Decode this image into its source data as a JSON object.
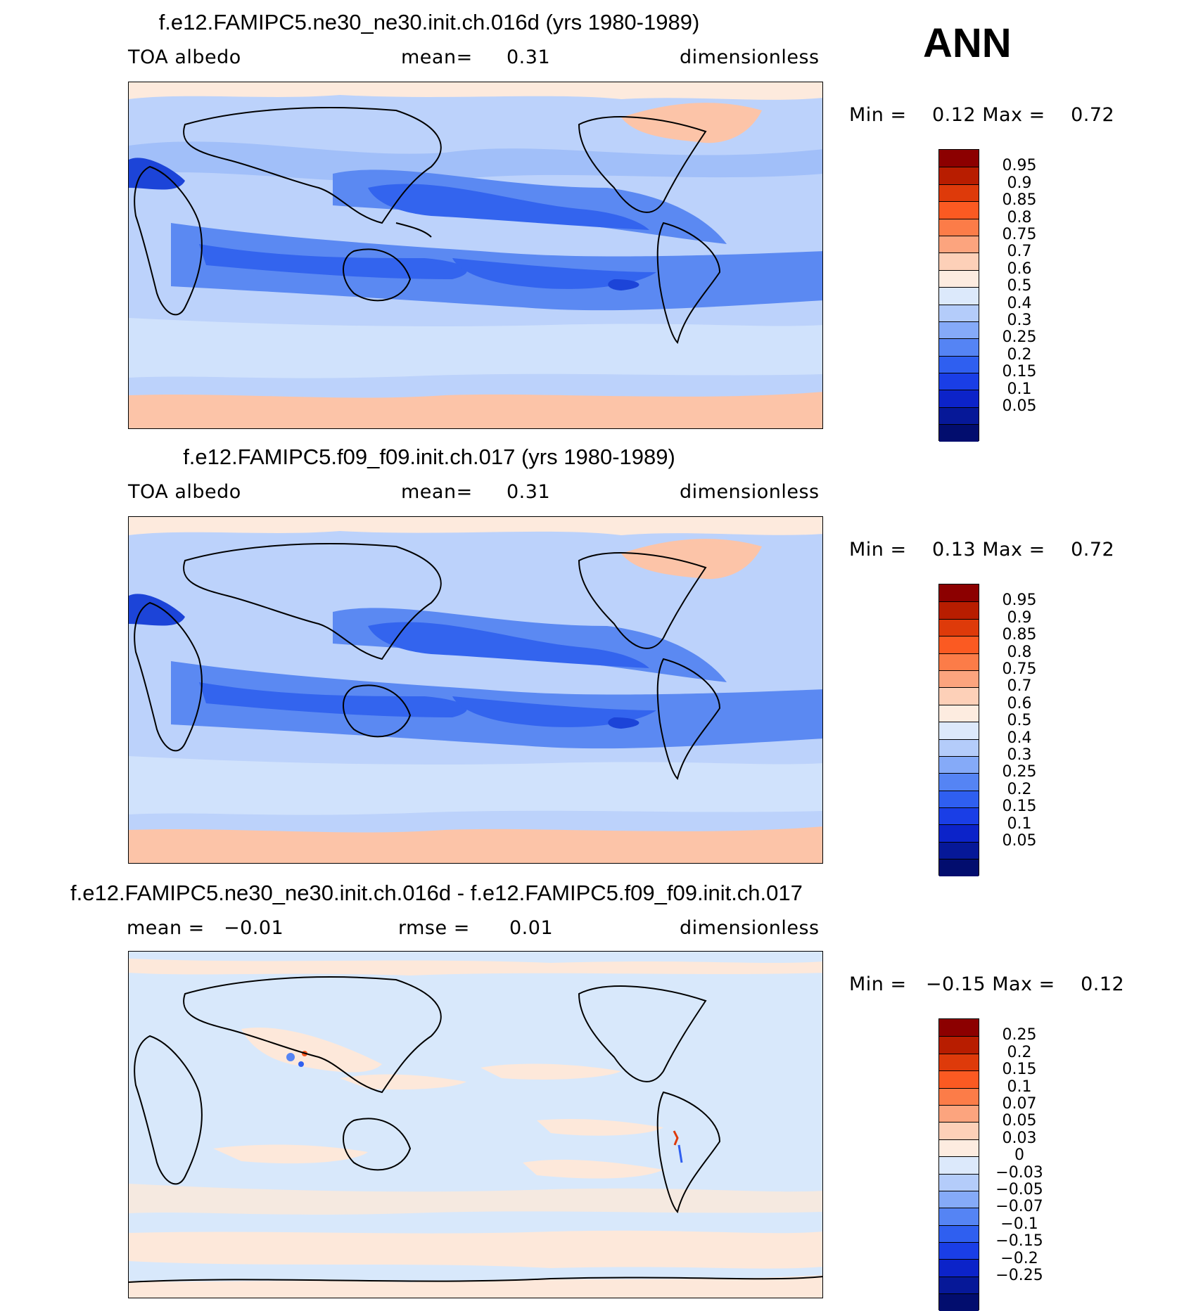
{
  "season_label": "ANN",
  "panels": [
    {
      "title": "f.e12.FAMIPC5.ne30_ne30.init.ch.016d (yrs 1980-1989)",
      "sub_left": "TOA albedo",
      "sub_mid_label": "mean=",
      "sub_mid_value": "0.31",
      "sub_right": "dimensionless",
      "min_label": "Min =",
      "min_value": "0.12",
      "max_label": "Max =",
      "max_value": "0.72",
      "colorbar_labels": [
        "0.95",
        "0.9",
        "0.85",
        "0.8",
        "0.75",
        "0.7",
        "0.6",
        "0.5",
        "0.4",
        "0.3",
        "0.25",
        "0.2",
        "0.15",
        "0.1",
        "0.05"
      ]
    },
    {
      "title": "f.e12.FAMIPC5.f09_f09.init.ch.017 (yrs 1980-1989)",
      "sub_left": "TOA albedo",
      "sub_mid_label": "mean=",
      "sub_mid_value": "0.31",
      "sub_right": "dimensionless",
      "min_label": "Min =",
      "min_value": "0.13",
      "max_label": "Max =",
      "max_value": "0.72",
      "colorbar_labels": [
        "0.95",
        "0.9",
        "0.85",
        "0.8",
        "0.75",
        "0.7",
        "0.6",
        "0.5",
        "0.4",
        "0.3",
        "0.25",
        "0.2",
        "0.15",
        "0.1",
        "0.05"
      ]
    },
    {
      "title": "f.e12.FAMIPC5.ne30_ne30.init.ch.016d - f.e12.FAMIPC5.f09_f09.init.ch.017",
      "sub_left_label": "mean =",
      "sub_left_value": "−0.01",
      "sub_mid_label": "rmse =",
      "sub_mid_value": "0.01",
      "sub_right": "dimensionless",
      "min_label": "Min =",
      "min_value": "−0.15",
      "max_label": "Max =",
      "max_value": "0.12",
      "colorbar_labels": [
        "0.25",
        "0.2",
        "0.15",
        "0.1",
        "0.07",
        "0.05",
        "0.03",
        "0",
        "−0.03",
        "−0.05",
        "−0.07",
        "−0.1",
        "−0.15",
        "−0.2",
        "−0.25"
      ]
    }
  ],
  "colorbar_colors": [
    "#8c0000",
    "#b81d00",
    "#de3a0a",
    "#fb5a22",
    "#fc7c48",
    "#fca47e",
    "#fdd0b8",
    "#fdece0",
    "#dce9fb",
    "#b4ccfa",
    "#85aaf8",
    "#5584f4",
    "#2f5ff0",
    "#1a3ee6",
    "#0c23c9",
    "#061898",
    "#020d6e"
  ],
  "map_palette": {
    "ice_cap": "#fcc4a8",
    "ice_light": "#fdeadd",
    "very_light": "#d9e8fc",
    "light": "#bcd2fb",
    "mid": "#8fb2f8",
    "dark": "#5b89f2",
    "darker": "#3364ee",
    "darkest": "#1c44d8",
    "coast": "#000000",
    "diff_bg": "#d8e8fb",
    "diff_pos": "#fde8da"
  }
}
